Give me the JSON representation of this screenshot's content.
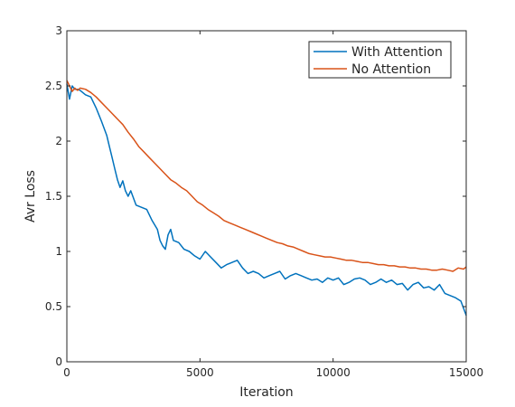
{
  "chart_data": {
    "type": "line",
    "title": "",
    "xlabel": "Iteration",
    "ylabel": "Avr Loss",
    "xlim": [
      0,
      15000
    ],
    "ylim": [
      0,
      3
    ],
    "xticks": [
      0,
      5000,
      10000,
      15000
    ],
    "yticks": [
      0,
      0.5,
      1,
      1.5,
      2,
      2.5,
      3
    ],
    "grid": false,
    "legend_position": "top-right",
    "series": [
      {
        "name": "With Attention",
        "color": "#0072BD",
        "x": [
          0,
          100,
          200,
          300,
          400,
          500,
          700,
          900,
          1100,
          1300,
          1500,
          1600,
          1700,
          1800,
          1900,
          2000,
          2100,
          2200,
          2300,
          2400,
          2600,
          2800,
          3000,
          3200,
          3400,
          3500,
          3600,
          3700,
          3800,
          3900,
          4000,
          4200,
          4400,
          4600,
          4800,
          5000,
          5200,
          5400,
          5600,
          5800,
          6000,
          6200,
          6400,
          6600,
          6800,
          7000,
          7200,
          7400,
          7600,
          7800,
          8000,
          8200,
          8400,
          8600,
          8800,
          9000,
          9200,
          9400,
          9600,
          9800,
          10000,
          10200,
          10400,
          10600,
          10800,
          11000,
          11200,
          11400,
          11600,
          11800,
          12000,
          12200,
          12400,
          12600,
          12800,
          13000,
          13200,
          13400,
          13600,
          13800,
          14000,
          14200,
          14400,
          14600,
          14800,
          15000
        ],
        "values": [
          2.52,
          2.38,
          2.5,
          2.47,
          2.47,
          2.46,
          2.42,
          2.4,
          2.3,
          2.18,
          2.05,
          1.95,
          1.85,
          1.75,
          1.65,
          1.58,
          1.64,
          1.55,
          1.5,
          1.55,
          1.42,
          1.4,
          1.38,
          1.28,
          1.2,
          1.1,
          1.05,
          1.02,
          1.15,
          1.2,
          1.1,
          1.08,
          1.02,
          1.0,
          0.96,
          0.93,
          1.0,
          0.95,
          0.9,
          0.85,
          0.88,
          0.9,
          0.92,
          0.85,
          0.8,
          0.82,
          0.8,
          0.76,
          0.78,
          0.8,
          0.82,
          0.75,
          0.78,
          0.8,
          0.78,
          0.76,
          0.74,
          0.75,
          0.72,
          0.76,
          0.74,
          0.76,
          0.7,
          0.72,
          0.75,
          0.76,
          0.74,
          0.7,
          0.72,
          0.75,
          0.72,
          0.74,
          0.7,
          0.71,
          0.65,
          0.7,
          0.72,
          0.67,
          0.68,
          0.65,
          0.7,
          0.62,
          0.6,
          0.58,
          0.55,
          0.42
        ]
      },
      {
        "name": "No Attention",
        "color": "#D95319",
        "x": [
          0,
          100,
          200,
          300,
          400,
          500,
          700,
          900,
          1100,
          1300,
          1500,
          1700,
          1900,
          2100,
          2300,
          2500,
          2700,
          2900,
          3100,
          3300,
          3500,
          3700,
          3900,
          4100,
          4300,
          4500,
          4700,
          4900,
          5100,
          5300,
          5500,
          5700,
          5900,
          6100,
          6300,
          6500,
          6700,
          6900,
          7100,
          7300,
          7500,
          7700,
          7900,
          8100,
          8300,
          8500,
          8700,
          8900,
          9100,
          9300,
          9500,
          9700,
          9900,
          10100,
          10300,
          10500,
          10700,
          10900,
          11100,
          11300,
          11500,
          11700,
          11900,
          12100,
          12300,
          12500,
          12700,
          12900,
          13100,
          13300,
          13500,
          13700,
          13900,
          14100,
          14300,
          14500,
          14700,
          14900,
          15000
        ],
        "values": [
          2.55,
          2.5,
          2.45,
          2.48,
          2.46,
          2.48,
          2.47,
          2.44,
          2.4,
          2.35,
          2.3,
          2.25,
          2.2,
          2.15,
          2.08,
          2.02,
          1.95,
          1.9,
          1.85,
          1.8,
          1.75,
          1.7,
          1.65,
          1.62,
          1.58,
          1.55,
          1.5,
          1.45,
          1.42,
          1.38,
          1.35,
          1.32,
          1.28,
          1.26,
          1.24,
          1.22,
          1.2,
          1.18,
          1.16,
          1.14,
          1.12,
          1.1,
          1.08,
          1.07,
          1.05,
          1.04,
          1.02,
          1.0,
          0.98,
          0.97,
          0.96,
          0.95,
          0.95,
          0.94,
          0.93,
          0.92,
          0.92,
          0.91,
          0.9,
          0.9,
          0.89,
          0.88,
          0.88,
          0.87,
          0.87,
          0.86,
          0.86,
          0.85,
          0.85,
          0.84,
          0.84,
          0.83,
          0.83,
          0.84,
          0.83,
          0.82,
          0.85,
          0.84,
          0.86
        ]
      }
    ]
  }
}
